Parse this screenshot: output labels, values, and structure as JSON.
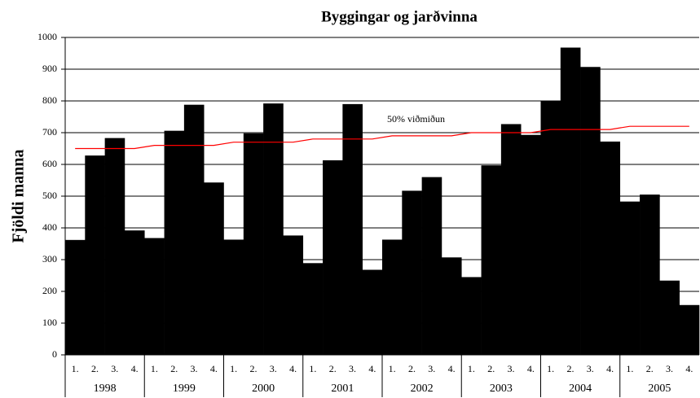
{
  "chart_data": {
    "type": "bar",
    "title": "Byggingar og jarðvinna",
    "y_label": "Fjöldi manna",
    "categories": [
      "1.",
      "2.",
      "3.",
      "4.",
      "1.",
      "2.",
      "3.",
      "4.",
      "1.",
      "2.",
      "3.",
      "4.",
      "1.",
      "2.",
      "3.",
      "4.",
      "1.",
      "2.",
      "3.",
      "4.",
      "1.",
      "2.",
      "3.",
      "4.",
      "1.",
      "2.",
      "3.",
      "4.",
      "1.",
      "2.",
      "3.",
      "4."
    ],
    "years": [
      "1998",
      "1999",
      "2000",
      "2001",
      "2002",
      "2003",
      "2004",
      "2005"
    ],
    "series": [
      {
        "type": "bar",
        "color": "#000000",
        "values": [
          362,
          628,
          683,
          392,
          368,
          706,
          788,
          543,
          363,
          698,
          792,
          376,
          289,
          613,
          790,
          268,
          363,
          517,
          560,
          307,
          245,
          597,
          727,
          693,
          800,
          968,
          907,
          672,
          483,
          505,
          234,
          157
        ]
      },
      {
        "type": "line",
        "name": "50% viðmiðun",
        "color": "#ff0000",
        "values": [
          650,
          650,
          650,
          650,
          660,
          660,
          660,
          660,
          670,
          670,
          670,
          670,
          680,
          680,
          680,
          680,
          690,
          690,
          690,
          690,
          700,
          700,
          700,
          700,
          710,
          710,
          710,
          710,
          720,
          720,
          720,
          720
        ]
      }
    ],
    "ylim": [
      0,
      1000
    ],
    "yticks": [
      0,
      100,
      200,
      300,
      400,
      500,
      600,
      700,
      800,
      900,
      1000
    ],
    "grid": true
  }
}
